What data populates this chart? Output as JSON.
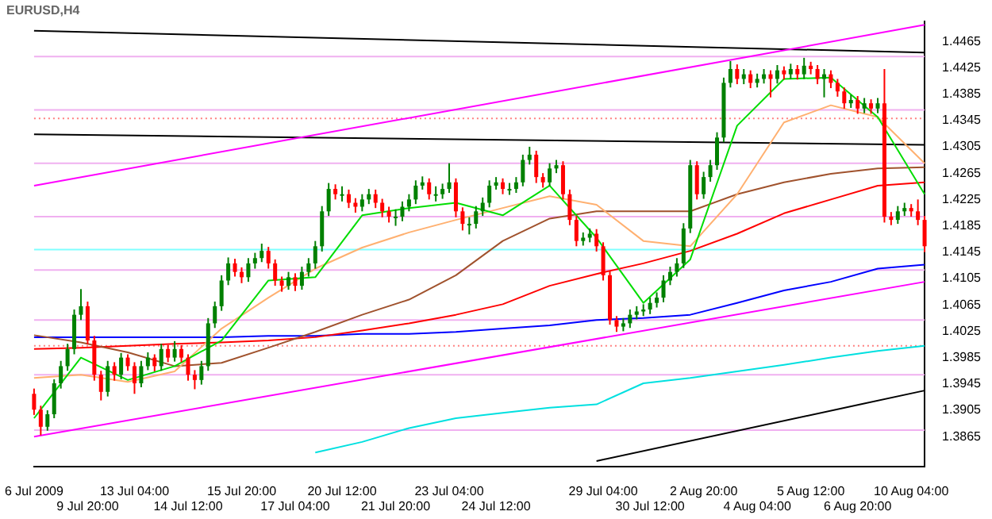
{
  "chart_data": {
    "type": "candlestick",
    "title": "EURUSD,H4",
    "categories": [
      "6 Jul 2009",
      null,
      null,
      null,
      null,
      null,
      null,
      null,
      "9 Jul 20:00",
      null,
      null,
      null,
      null,
      null,
      null,
      "13 Jul 04:00",
      null,
      null,
      null,
      null,
      null,
      null,
      null,
      "14 Jul 12:00",
      null,
      null,
      null,
      null,
      null,
      null,
      null,
      "15 Jul 20:00",
      null,
      null,
      null,
      null,
      null,
      null,
      null,
      "17 Jul 04:00",
      null,
      null,
      null,
      null,
      null,
      null,
      "20 Jul 12:00",
      null,
      null,
      null,
      null,
      null,
      null,
      null,
      "21 Jul 20:00",
      null,
      null,
      null,
      null,
      null,
      null,
      null,
      "23 Jul 04:00",
      null,
      null,
      null,
      null,
      null,
      null,
      "24 Jul 12:00",
      null,
      null,
      null,
      null,
      null,
      null,
      null,
      null,
      null,
      null,
      null,
      null,
      null,
      null,
      null,
      "29 Jul 04:00",
      null,
      null,
      null,
      null,
      null,
      null,
      "30 Jul 12:00",
      null,
      null,
      null,
      null,
      null,
      null,
      null,
      "2 Aug 20:00",
      null,
      null,
      null,
      null,
      null,
      null,
      null,
      "4 Aug 04:00",
      null,
      null,
      null,
      null,
      null,
      null,
      null,
      "5 Aug 12:00",
      null,
      null,
      null,
      null,
      null,
      null,
      "6 Aug 20:00",
      null,
      null,
      null,
      null,
      null,
      null,
      null,
      "10 Aug 04:00",
      null,
      null
    ],
    "ohlc": [
      [
        1.393,
        1.3938,
        1.3898,
        1.3906
      ],
      [
        1.3906,
        1.3912,
        1.3867,
        1.388
      ],
      [
        1.388,
        1.3905,
        1.3874,
        1.3899
      ],
      [
        1.3899,
        1.3952,
        1.3893,
        1.3946
      ],
      [
        1.3946,
        1.398,
        1.3938,
        1.3972
      ],
      [
        1.3972,
        1.4006,
        1.3965,
        1.3998
      ],
      [
        1.3998,
        1.4058,
        1.399,
        1.405
      ],
      [
        1.405,
        1.4089,
        1.4042,
        1.4063
      ],
      [
        1.4063,
        1.407,
        1.4005,
        1.4011
      ],
      [
        1.4011,
        1.4018,
        1.395,
        1.3959
      ],
      [
        1.3959,
        1.3965,
        1.392,
        1.3933
      ],
      [
        1.3933,
        1.398,
        1.3926,
        1.3972
      ],
      [
        1.3972,
        1.3978,
        1.395,
        1.3959
      ],
      [
        1.3959,
        1.3992,
        1.3952,
        1.3985
      ],
      [
        1.3985,
        1.399,
        1.3965,
        1.3972
      ],
      [
        1.3972,
        1.3978,
        1.393,
        1.3946
      ],
      [
        1.3946,
        1.398,
        1.394,
        1.3972
      ],
      [
        1.3972,
        1.3993,
        1.3966,
        1.3985
      ],
      [
        1.3985,
        1.399,
        1.3964,
        1.3972
      ],
      [
        1.3972,
        1.4006,
        1.3965,
        1.3998
      ],
      [
        1.3998,
        1.4004,
        1.3978,
        1.3985
      ],
      [
        1.3985,
        1.401,
        1.3979,
        1.3998
      ],
      [
        1.3998,
        1.4004,
        1.3978,
        1.3985
      ],
      [
        1.3985,
        1.399,
        1.395,
        1.3959
      ],
      [
        1.3959,
        1.3966,
        1.3937,
        1.3951
      ],
      [
        1.3951,
        1.398,
        1.3944,
        1.3972
      ],
      [
        1.3972,
        1.4045,
        1.3965,
        1.4037
      ],
      [
        1.4037,
        1.407,
        1.403,
        1.4063
      ],
      [
        1.4063,
        1.411,
        1.4056,
        1.4102
      ],
      [
        1.4102,
        1.4137,
        1.4095,
        1.4128
      ],
      [
        1.4128,
        1.4135,
        1.4108,
        1.4115
      ],
      [
        1.4115,
        1.4122,
        1.4098,
        1.4107
      ],
      [
        1.4107,
        1.4136,
        1.41,
        1.4128
      ],
      [
        1.4128,
        1.4144,
        1.412,
        1.4136
      ],
      [
        1.4136,
        1.4158,
        1.413,
        1.4147
      ],
      [
        1.4147,
        1.4153,
        1.412,
        1.4128
      ],
      [
        1.4128,
        1.4134,
        1.4094,
        1.4102
      ],
      [
        1.4102,
        1.4108,
        1.4085,
        1.4094
      ],
      [
        1.4094,
        1.4115,
        1.4088,
        1.4107
      ],
      [
        1.4107,
        1.4113,
        1.4086,
        1.4094
      ],
      [
        1.4094,
        1.4123,
        1.4088,
        1.4115
      ],
      [
        1.4115,
        1.4136,
        1.4108,
        1.4128
      ],
      [
        1.4128,
        1.4162,
        1.412,
        1.4154
      ],
      [
        1.4154,
        1.4215,
        1.4146,
        1.4207
      ],
      [
        1.4207,
        1.425,
        1.42,
        1.4241
      ],
      [
        1.4241,
        1.4248,
        1.4225,
        1.4233
      ],
      [
        1.4233,
        1.4245,
        1.4222,
        1.4233
      ],
      [
        1.4233,
        1.424,
        1.4212,
        1.422
      ],
      [
        1.422,
        1.4227,
        1.4205,
        1.4214
      ],
      [
        1.4214,
        1.4233,
        1.4207,
        1.4225
      ],
      [
        1.4225,
        1.4241,
        1.4218,
        1.4233
      ],
      [
        1.4233,
        1.424,
        1.4212,
        1.422
      ],
      [
        1.422,
        1.4226,
        1.4198,
        1.4207
      ],
      [
        1.4207,
        1.4214,
        1.419,
        1.4199
      ],
      [
        1.4199,
        1.421,
        1.4185,
        1.4199
      ],
      [
        1.4199,
        1.4222,
        1.4192,
        1.4214
      ],
      [
        1.4214,
        1.4233,
        1.4207,
        1.4225
      ],
      [
        1.4225,
        1.4254,
        1.4218,
        1.4246
      ],
      [
        1.4246,
        1.426,
        1.424,
        1.4251
      ],
      [
        1.4251,
        1.4257,
        1.4225,
        1.4233
      ],
      [
        1.4233,
        1.4245,
        1.4222,
        1.4233
      ],
      [
        1.4233,
        1.4249,
        1.4226,
        1.4241
      ],
      [
        1.4241,
        1.428,
        1.4235,
        1.4251
      ],
      [
        1.4251,
        1.4257,
        1.4198,
        1.4207
      ],
      [
        1.4207,
        1.4213,
        1.4178,
        1.4188
      ],
      [
        1.4188,
        1.4198,
        1.4172,
        1.4188
      ],
      [
        1.4188,
        1.4215,
        1.4181,
        1.4207
      ],
      [
        1.4207,
        1.4228,
        1.42,
        1.422
      ],
      [
        1.422,
        1.4254,
        1.4213,
        1.4246
      ],
      [
        1.4246,
        1.4259,
        1.424,
        1.4251
      ],
      [
        1.4251,
        1.4257,
        1.4233,
        1.4241
      ],
      [
        1.4241,
        1.425,
        1.4232,
        1.4241
      ],
      [
        1.4241,
        1.4259,
        1.4235,
        1.4251
      ],
      [
        1.4251,
        1.4293,
        1.4245,
        1.4285
      ],
      [
        1.4285,
        1.4305,
        1.4278,
        1.4293
      ],
      [
        1.4293,
        1.4299,
        1.425,
        1.4259
      ],
      [
        1.4259,
        1.4265,
        1.4243,
        1.4251
      ],
      [
        1.4251,
        1.428,
        1.4245,
        1.4272
      ],
      [
        1.4272,
        1.4285,
        1.4265,
        1.4277
      ],
      [
        1.4277,
        1.4283,
        1.4225,
        1.4233
      ],
      [
        1.4233,
        1.424,
        1.4186,
        1.4194
      ],
      [
        1.4194,
        1.42,
        1.4154,
        1.4162
      ],
      [
        1.4162,
        1.4175,
        1.4155,
        1.4167
      ],
      [
        1.4167,
        1.4181,
        1.416,
        1.4173
      ],
      [
        1.4173,
        1.418,
        1.4146,
        1.4154
      ],
      [
        1.4154,
        1.416,
        1.4102,
        1.411
      ],
      [
        1.411,
        1.4116,
        1.4035,
        1.4042
      ],
      [
        1.4042,
        1.4048,
        1.4024,
        1.4032
      ],
      [
        1.4032,
        1.4045,
        1.4025,
        1.4037
      ],
      [
        1.4037,
        1.4058,
        1.403,
        1.405
      ],
      [
        1.405,
        1.4063,
        1.4043,
        1.4055
      ],
      [
        1.4055,
        1.4066,
        1.4048,
        1.4058
      ],
      [
        1.4058,
        1.4076,
        1.4051,
        1.4068
      ],
      [
        1.4068,
        1.4084,
        1.4061,
        1.4076
      ],
      [
        1.4076,
        1.411,
        1.4069,
        1.4102
      ],
      [
        1.4102,
        1.4123,
        1.4095,
        1.4115
      ],
      [
        1.4115,
        1.4136,
        1.4108,
        1.4128
      ],
      [
        1.4128,
        1.4189,
        1.4121,
        1.4181
      ],
      [
        1.4181,
        1.4285,
        1.4174,
        1.4277
      ],
      [
        1.4277,
        1.4283,
        1.4225,
        1.4233
      ],
      [
        1.4233,
        1.4267,
        1.4226,
        1.4259
      ],
      [
        1.4259,
        1.4285,
        1.4252,
        1.4277
      ],
      [
        1.4277,
        1.4327,
        1.427,
        1.4319
      ],
      [
        1.4319,
        1.441,
        1.4312,
        1.4402
      ],
      [
        1.4402,
        1.4435,
        1.4395,
        1.4423
      ],
      [
        1.4423,
        1.443,
        1.44,
        1.4408
      ],
      [
        1.4408,
        1.4423,
        1.44,
        1.4415
      ],
      [
        1.4415,
        1.4421,
        1.4394,
        1.4402
      ],
      [
        1.4402,
        1.4416,
        1.4395,
        1.4408
      ],
      [
        1.4408,
        1.4423,
        1.4401,
        1.4415
      ],
      [
        1.4415,
        1.4421,
        1.438,
        1.4408
      ],
      [
        1.4408,
        1.4429,
        1.4401,
        1.4421
      ],
      [
        1.4421,
        1.4427,
        1.4407,
        1.4415
      ],
      [
        1.4415,
        1.4431,
        1.4408,
        1.4423
      ],
      [
        1.4423,
        1.4429,
        1.4407,
        1.4415
      ],
      [
        1.4415,
        1.444,
        1.4408,
        1.4428
      ],
      [
        1.4428,
        1.4434,
        1.4415,
        1.4423
      ],
      [
        1.4423,
        1.4429,
        1.44,
        1.4408
      ],
      [
        1.4408,
        1.4423,
        1.438,
        1.4415
      ],
      [
        1.4415,
        1.4421,
        1.4394,
        1.4402
      ],
      [
        1.4402,
        1.4408,
        1.4381,
        1.4389
      ],
      [
        1.4389,
        1.4395,
        1.4363,
        1.4371
      ],
      [
        1.4371,
        1.4384,
        1.4364,
        1.4376
      ],
      [
        1.4376,
        1.4382,
        1.4355,
        1.4363
      ],
      [
        1.4363,
        1.4379,
        1.4356,
        1.4371
      ],
      [
        1.4371,
        1.4377,
        1.4355,
        1.4363
      ],
      [
        1.4363,
        1.4379,
        1.4356,
        1.4371
      ],
      [
        1.4371,
        1.4423,
        1.419,
        1.4199
      ],
      [
        1.4199,
        1.4206,
        1.4186,
        1.4194
      ],
      [
        1.4194,
        1.4215,
        1.4188,
        1.4207
      ],
      [
        1.4207,
        1.422,
        1.42,
        1.4212
      ],
      [
        1.4212,
        1.4218,
        1.4199,
        1.4207
      ],
      [
        1.4207,
        1.4225,
        1.4186,
        1.4194
      ],
      [
        1.4194,
        1.42,
        1.4145,
        1.4154
      ]
    ],
    "series": [
      {
        "type": "line",
        "color": "#00dd00",
        "values": [
          1.3893,
          null,
          null,
          null,
          null,
          null,
          null,
          1.3985,
          null,
          null,
          null,
          null,
          null,
          null,
          1.3951,
          null,
          null,
          null,
          null,
          null,
          null,
          1.3972,
          null,
          null,
          null,
          null,
          null,
          null,
          1.4011,
          null,
          null,
          null,
          null,
          null,
          null,
          1.4102,
          null,
          null,
          null,
          null,
          null,
          null,
          1.4107,
          null,
          null,
          null,
          null,
          null,
          null,
          1.4201,
          null,
          null,
          null,
          null,
          null,
          null,
          1.4212,
          null,
          null,
          null,
          null,
          null,
          null,
          1.422,
          null,
          null,
          null,
          null,
          null,
          null,
          1.4201,
          null,
          null,
          null,
          null,
          null,
          null,
          1.4246,
          null,
          null,
          null,
          null,
          null,
          null,
          1.4167,
          null,
          null,
          null,
          null,
          null,
          null,
          1.4068,
          null,
          null,
          null,
          null,
          null,
          null,
          1.4134,
          null,
          null,
          null,
          null,
          null,
          null,
          1.4337,
          null,
          null,
          null,
          null,
          null,
          null,
          1.4408,
          null,
          null,
          null,
          null,
          null,
          null,
          1.441,
          null,
          null,
          null,
          null,
          null,
          null,
          1.435,
          null,
          null,
          null,
          null,
          null,
          null,
          1.4233
        ]
      },
      {
        "type": "line",
        "color": "#ffb070",
        "values": [
          1.3954,
          null,
          null,
          null,
          null,
          null,
          null,
          1.3959,
          null,
          null,
          null,
          null,
          null,
          null,
          1.3948,
          null,
          null,
          null,
          null,
          null,
          null,
          1.3964,
          null,
          null,
          null,
          null,
          null,
          null,
          1.4029,
          null,
          null,
          null,
          null,
          null,
          null,
          1.4076,
          null,
          null,
          null,
          null,
          null,
          null,
          1.412,
          null,
          null,
          null,
          null,
          null,
          null,
          1.4152,
          null,
          null,
          null,
          null,
          null,
          null,
          1.4175,
          null,
          null,
          null,
          null,
          null,
          null,
          1.4194,
          null,
          null,
          null,
          null,
          null,
          null,
          1.4212,
          null,
          null,
          null,
          null,
          null,
          null,
          1.423,
          null,
          null,
          null,
          null,
          null,
          null,
          1.4217,
          null,
          null,
          null,
          null,
          null,
          null,
          1.4162,
          null,
          null,
          null,
          null,
          null,
          null,
          1.4154,
          null,
          null,
          null,
          null,
          null,
          null,
          1.4233,
          null,
          null,
          null,
          null,
          null,
          null,
          1.4342,
          null,
          null,
          null,
          null,
          null,
          null,
          1.4368,
          null,
          null,
          null,
          null,
          null,
          null,
          1.435,
          null,
          null,
          null,
          null,
          null,
          null,
          1.428
        ]
      },
      {
        "type": "line",
        "color": "#a0522d",
        "values": [
          1.4019,
          null,
          null,
          null,
          null,
          null,
          null,
          1.4008,
          null,
          null,
          null,
          null,
          null,
          null,
          1.3993,
          null,
          null,
          null,
          null,
          null,
          null,
          1.3972,
          null,
          null,
          null,
          null,
          null,
          null,
          1.3977,
          null,
          null,
          null,
          null,
          null,
          null,
          1.4,
          null,
          null,
          null,
          null,
          null,
          null,
          1.4024,
          null,
          null,
          null,
          null,
          null,
          null,
          1.405,
          null,
          null,
          null,
          null,
          null,
          null,
          1.4073,
          null,
          null,
          null,
          null,
          null,
          null,
          1.411,
          null,
          null,
          null,
          null,
          null,
          null,
          1.4162,
          null,
          null,
          null,
          null,
          null,
          null,
          1.4196,
          null,
          null,
          null,
          null,
          null,
          null,
          1.4207,
          null,
          null,
          null,
          null,
          null,
          null,
          1.4207,
          null,
          null,
          null,
          null,
          null,
          null,
          1.4207,
          null,
          null,
          null,
          null,
          null,
          null,
          1.4233,
          null,
          null,
          null,
          null,
          null,
          null,
          1.4251,
          null,
          null,
          null,
          null,
          null,
          null,
          1.4264,
          null,
          null,
          null,
          null,
          null,
          null,
          1.4272,
          null,
          null,
          null,
          null,
          null,
          null,
          1.4274
        ]
      },
      {
        "type": "line",
        "color": "#ff0000",
        "values": [
          1.3998,
          null,
          null,
          null,
          null,
          null,
          null,
          1.4,
          null,
          null,
          null,
          null,
          null,
          null,
          1.4003,
          null,
          null,
          null,
          null,
          null,
          null,
          1.4006,
          null,
          null,
          null,
          null,
          null,
          null,
          1.4008,
          null,
          null,
          null,
          null,
          null,
          null,
          1.4011,
          null,
          null,
          null,
          null,
          null,
          null,
          1.4016,
          null,
          null,
          null,
          null,
          null,
          null,
          1.4026,
          null,
          null,
          null,
          null,
          null,
          null,
          1.4037,
          null,
          null,
          null,
          null,
          null,
          null,
          1.405,
          null,
          null,
          null,
          null,
          null,
          null,
          1.4066,
          null,
          null,
          null,
          null,
          null,
          null,
          1.4094,
          null,
          null,
          null,
          null,
          null,
          null,
          1.4112,
          null,
          null,
          null,
          null,
          null,
          null,
          1.4128,
          null,
          null,
          null,
          null,
          null,
          null,
          1.4147,
          null,
          null,
          null,
          null,
          null,
          null,
          1.4173,
          null,
          null,
          null,
          null,
          null,
          null,
          1.4204,
          null,
          null,
          null,
          null,
          null,
          null,
          1.4225,
          null,
          null,
          null,
          null,
          null,
          null,
          1.4246,
          null,
          null,
          null,
          null,
          null,
          null,
          1.4251
        ]
      },
      {
        "type": "line",
        "color": "#0000ff",
        "values": [
          1.4016,
          null,
          null,
          null,
          null,
          null,
          null,
          1.4016,
          null,
          null,
          null,
          null,
          null,
          null,
          1.4016,
          null,
          null,
          null,
          null,
          null,
          null,
          1.4016,
          null,
          null,
          null,
          null,
          null,
          null,
          1.4016,
          null,
          null,
          null,
          null,
          null,
          null,
          1.4018,
          null,
          null,
          null,
          null,
          null,
          null,
          1.4018,
          null,
          null,
          null,
          null,
          null,
          null,
          1.4021,
          null,
          null,
          null,
          null,
          null,
          null,
          1.4021,
          null,
          null,
          null,
          null,
          null,
          null,
          1.4024,
          null,
          null,
          null,
          null,
          null,
          null,
          1.4029,
          null,
          null,
          null,
          null,
          null,
          null,
          1.4034,
          null,
          null,
          null,
          null,
          null,
          null,
          1.4042,
          null,
          null,
          null,
          null,
          null,
          null,
          1.4045,
          null,
          null,
          null,
          null,
          null,
          null,
          1.405,
          null,
          null,
          null,
          null,
          null,
          null,
          1.4068,
          null,
          null,
          null,
          null,
          null,
          null,
          1.4087,
          null,
          null,
          null,
          null,
          null,
          null,
          1.41,
          null,
          null,
          null,
          null,
          null,
          null,
          1.412,
          null,
          null,
          null,
          null,
          null,
          null,
          1.4126
        ]
      },
      {
        "type": "line",
        "color": "#00e0e0",
        "values": [
          null,
          null,
          null,
          null,
          null,
          null,
          null,
          null,
          null,
          null,
          null,
          null,
          null,
          null,
          null,
          null,
          null,
          null,
          null,
          null,
          null,
          null,
          null,
          null,
          null,
          null,
          null,
          null,
          null,
          null,
          null,
          null,
          null,
          null,
          null,
          null,
          null,
          null,
          null,
          null,
          null,
          null,
          1.3841,
          null,
          null,
          null,
          null,
          null,
          null,
          1.3857,
          null,
          null,
          null,
          null,
          null,
          null,
          1.3878,
          null,
          null,
          null,
          null,
          null,
          null,
          1.3893,
          null,
          null,
          null,
          null,
          null,
          null,
          1.3901,
          null,
          null,
          null,
          null,
          null,
          null,
          1.3909,
          null,
          null,
          null,
          null,
          null,
          null,
          1.3914,
          null,
          null,
          null,
          null,
          null,
          null,
          1.3946,
          null,
          null,
          null,
          null,
          null,
          null,
          1.3954,
          null,
          null,
          null,
          null,
          null,
          null,
          1.3964,
          null,
          null,
          null,
          null,
          null,
          null,
          1.3974,
          null,
          null,
          null,
          null,
          null,
          null,
          1.3985,
          null,
          null,
          null,
          null,
          null,
          null,
          1.3995,
          null,
          null,
          null,
          null,
          null,
          null,
          1.4003
        ]
      },
      {
        "type": "line",
        "color": "#ff00ff",
        "values": [
          1.4246,
          null,
          null,
          null,
          null,
          null,
          null,
          null,
          null,
          null,
          null,
          null,
          null,
          null,
          null,
          null,
          null,
          null,
          null,
          null,
          null,
          null,
          null,
          null,
          null,
          null,
          null,
          null,
          null,
          null,
          null,
          null,
          null,
          null,
          null,
          null,
          null,
          null,
          null,
          null,
          null,
          null,
          null,
          null,
          null,
          null,
          null,
          null,
          null,
          null,
          null,
          null,
          null,
          null,
          null,
          null,
          null,
          null,
          null,
          null,
          null,
          null,
          null,
          null,
          null,
          null,
          null,
          null,
          null,
          null,
          null,
          null,
          null,
          null,
          null,
          null,
          null,
          null,
          null,
          null,
          null,
          null,
          null,
          null,
          null,
          null,
          null,
          null,
          null,
          null,
          null,
          null,
          null,
          null,
          null,
          null,
          null,
          null,
          null,
          null,
          null,
          null,
          null,
          null,
          null,
          null,
          null,
          null,
          null,
          null,
          null,
          null,
          null,
          null,
          null,
          null,
          null,
          null,
          null,
          null,
          null,
          null,
          null,
          null,
          null,
          null,
          null,
          null,
          null,
          null,
          null,
          null,
          null,
          1.449
        ]
      },
      {
        "type": "line",
        "color": "#ff00ff",
        "values": [
          1.3865,
          null,
          null,
          null,
          null,
          null,
          null,
          null,
          null,
          null,
          null,
          null,
          null,
          null,
          null,
          null,
          null,
          null,
          null,
          null,
          null,
          null,
          null,
          null,
          null,
          null,
          null,
          null,
          null,
          null,
          null,
          null,
          null,
          null,
          null,
          null,
          null,
          null,
          null,
          null,
          null,
          null,
          null,
          null,
          null,
          null,
          null,
          null,
          null,
          null,
          null,
          null,
          null,
          null,
          null,
          null,
          null,
          null,
          null,
          null,
          null,
          null,
          null,
          null,
          null,
          null,
          null,
          null,
          null,
          null,
          null,
          null,
          null,
          null,
          null,
          null,
          null,
          null,
          null,
          null,
          null,
          null,
          null,
          null,
          null,
          null,
          null,
          null,
          null,
          null,
          null,
          null,
          null,
          null,
          null,
          null,
          null,
          null,
          null,
          null,
          null,
          null,
          null,
          null,
          null,
          null,
          null,
          null,
          null,
          null,
          null,
          null,
          null,
          null,
          null,
          null,
          null,
          null,
          null,
          null,
          null,
          null,
          null,
          null,
          null,
          null,
          null,
          null,
          null,
          null,
          null,
          null,
          null,
          1.41
        ]
      },
      {
        "type": "line",
        "color": "#000000",
        "values": [
          1.4481,
          null,
          null,
          null,
          null,
          null,
          null,
          null,
          null,
          null,
          null,
          null,
          null,
          null,
          null,
          null,
          null,
          null,
          null,
          null,
          null,
          null,
          null,
          null,
          null,
          null,
          null,
          null,
          null,
          null,
          null,
          null,
          null,
          null,
          null,
          null,
          null,
          null,
          null,
          null,
          null,
          null,
          null,
          null,
          null,
          null,
          null,
          null,
          null,
          null,
          null,
          null,
          null,
          null,
          null,
          null,
          null,
          null,
          null,
          null,
          null,
          null,
          null,
          null,
          null,
          null,
          null,
          null,
          null,
          null,
          null,
          null,
          null,
          null,
          null,
          null,
          null,
          null,
          null,
          null,
          null,
          null,
          null,
          null,
          null,
          null,
          null,
          null,
          null,
          null,
          null,
          null,
          null,
          null,
          null,
          null,
          null,
          null,
          null,
          null,
          null,
          null,
          null,
          null,
          null,
          null,
          null,
          null,
          null,
          null,
          null,
          null,
          null,
          null,
          null,
          null,
          null,
          null,
          null,
          null,
          null,
          null,
          null,
          null,
          null,
          null,
          null,
          null,
          null,
          null,
          null,
          null,
          null,
          1.4448
        ]
      },
      {
        "type": "line",
        "color": "#000000",
        "values": [
          1.4324,
          null,
          null,
          null,
          null,
          null,
          null,
          null,
          null,
          null,
          null,
          null,
          null,
          null,
          null,
          null,
          null,
          null,
          null,
          null,
          null,
          null,
          null,
          null,
          null,
          null,
          null,
          null,
          null,
          null,
          null,
          null,
          null,
          null,
          null,
          null,
          null,
          null,
          null,
          null,
          null,
          null,
          null,
          null,
          null,
          null,
          null,
          null,
          null,
          null,
          null,
          null,
          null,
          null,
          null,
          null,
          null,
          null,
          null,
          null,
          null,
          null,
          null,
          null,
          null,
          null,
          null,
          null,
          null,
          null,
          null,
          null,
          null,
          null,
          null,
          null,
          null,
          null,
          null,
          null,
          null,
          null,
          null,
          null,
          null,
          null,
          null,
          null,
          null,
          null,
          null,
          null,
          null,
          null,
          null,
          null,
          null,
          null,
          null,
          null,
          null,
          null,
          null,
          null,
          null,
          null,
          null,
          null,
          null,
          null,
          null,
          null,
          null,
          null,
          null,
          null,
          null,
          null,
          null,
          null,
          null,
          null,
          null,
          null,
          null,
          null,
          null,
          null,
          null,
          null,
          null,
          null,
          null,
          1.4308
        ]
      },
      {
        "type": "line",
        "color": "#000000",
        "values": [
          null,
          null,
          null,
          null,
          null,
          null,
          null,
          null,
          null,
          null,
          null,
          null,
          null,
          null,
          null,
          null,
          null,
          null,
          null,
          null,
          null,
          null,
          null,
          null,
          null,
          null,
          null,
          null,
          null,
          null,
          null,
          null,
          null,
          null,
          null,
          null,
          null,
          null,
          null,
          null,
          null,
          null,
          null,
          null,
          null,
          null,
          null,
          null,
          null,
          null,
          null,
          null,
          null,
          null,
          null,
          null,
          null,
          null,
          null,
          null,
          null,
          null,
          null,
          null,
          null,
          null,
          null,
          null,
          null,
          null,
          null,
          null,
          null,
          null,
          null,
          null,
          null,
          null,
          null,
          null,
          null,
          null,
          null,
          null,
          1.3828,
          null,
          null,
          null,
          null,
          null,
          null,
          null,
          null,
          null,
          null,
          null,
          null,
          null,
          null,
          null,
          null,
          null,
          null,
          null,
          null,
          null,
          null,
          null,
          null,
          null,
          null,
          null,
          null,
          null,
          null,
          null,
          null,
          null,
          null,
          null,
          null,
          null,
          null,
          null,
          null,
          null,
          null,
          null,
          null,
          null,
          null,
          null,
          null,
          1.3935
        ]
      }
    ],
    "ref_lines": [
      {
        "axis": "y",
        "value": 1.4442,
        "color": "#f0b0f0"
      },
      {
        "axis": "y",
        "value": 1.4361,
        "color": "#f0b0f0"
      },
      {
        "axis": "y",
        "value": 1.428,
        "color": "#f0b0f0"
      },
      {
        "axis": "y",
        "value": 1.4199,
        "color": "#f0b0f0"
      },
      {
        "axis": "y",
        "value": 1.4118,
        "color": "#f0b0f0"
      },
      {
        "axis": "y",
        "value": 1.4042,
        "color": "#f0b0f0"
      },
      {
        "axis": "y",
        "value": 1.3959,
        "color": "#f0b0f0"
      },
      {
        "axis": "y",
        "value": 1.3875,
        "color": "#f0b0f0"
      },
      {
        "axis": "y",
        "value": 1.4348,
        "color": "#ff8080",
        "line_style": "dotted"
      },
      {
        "axis": "y",
        "value": 1.4003,
        "color": "#ff8080",
        "line_style": "dotted"
      },
      {
        "axis": "y",
        "value": 1.4149,
        "color": "#80ffff"
      }
    ],
    "ylim": [
      1.382,
      1.4495
    ],
    "yticks": [
      1.4465,
      1.4425,
      1.4385,
      1.4345,
      1.4305,
      1.4265,
      1.4225,
      1.4185,
      1.4145,
      1.4105,
      1.4065,
      1.4025,
      1.3985,
      1.3945,
      1.3905,
      1.3865
    ],
    "grid": false,
    "legend": false
  }
}
